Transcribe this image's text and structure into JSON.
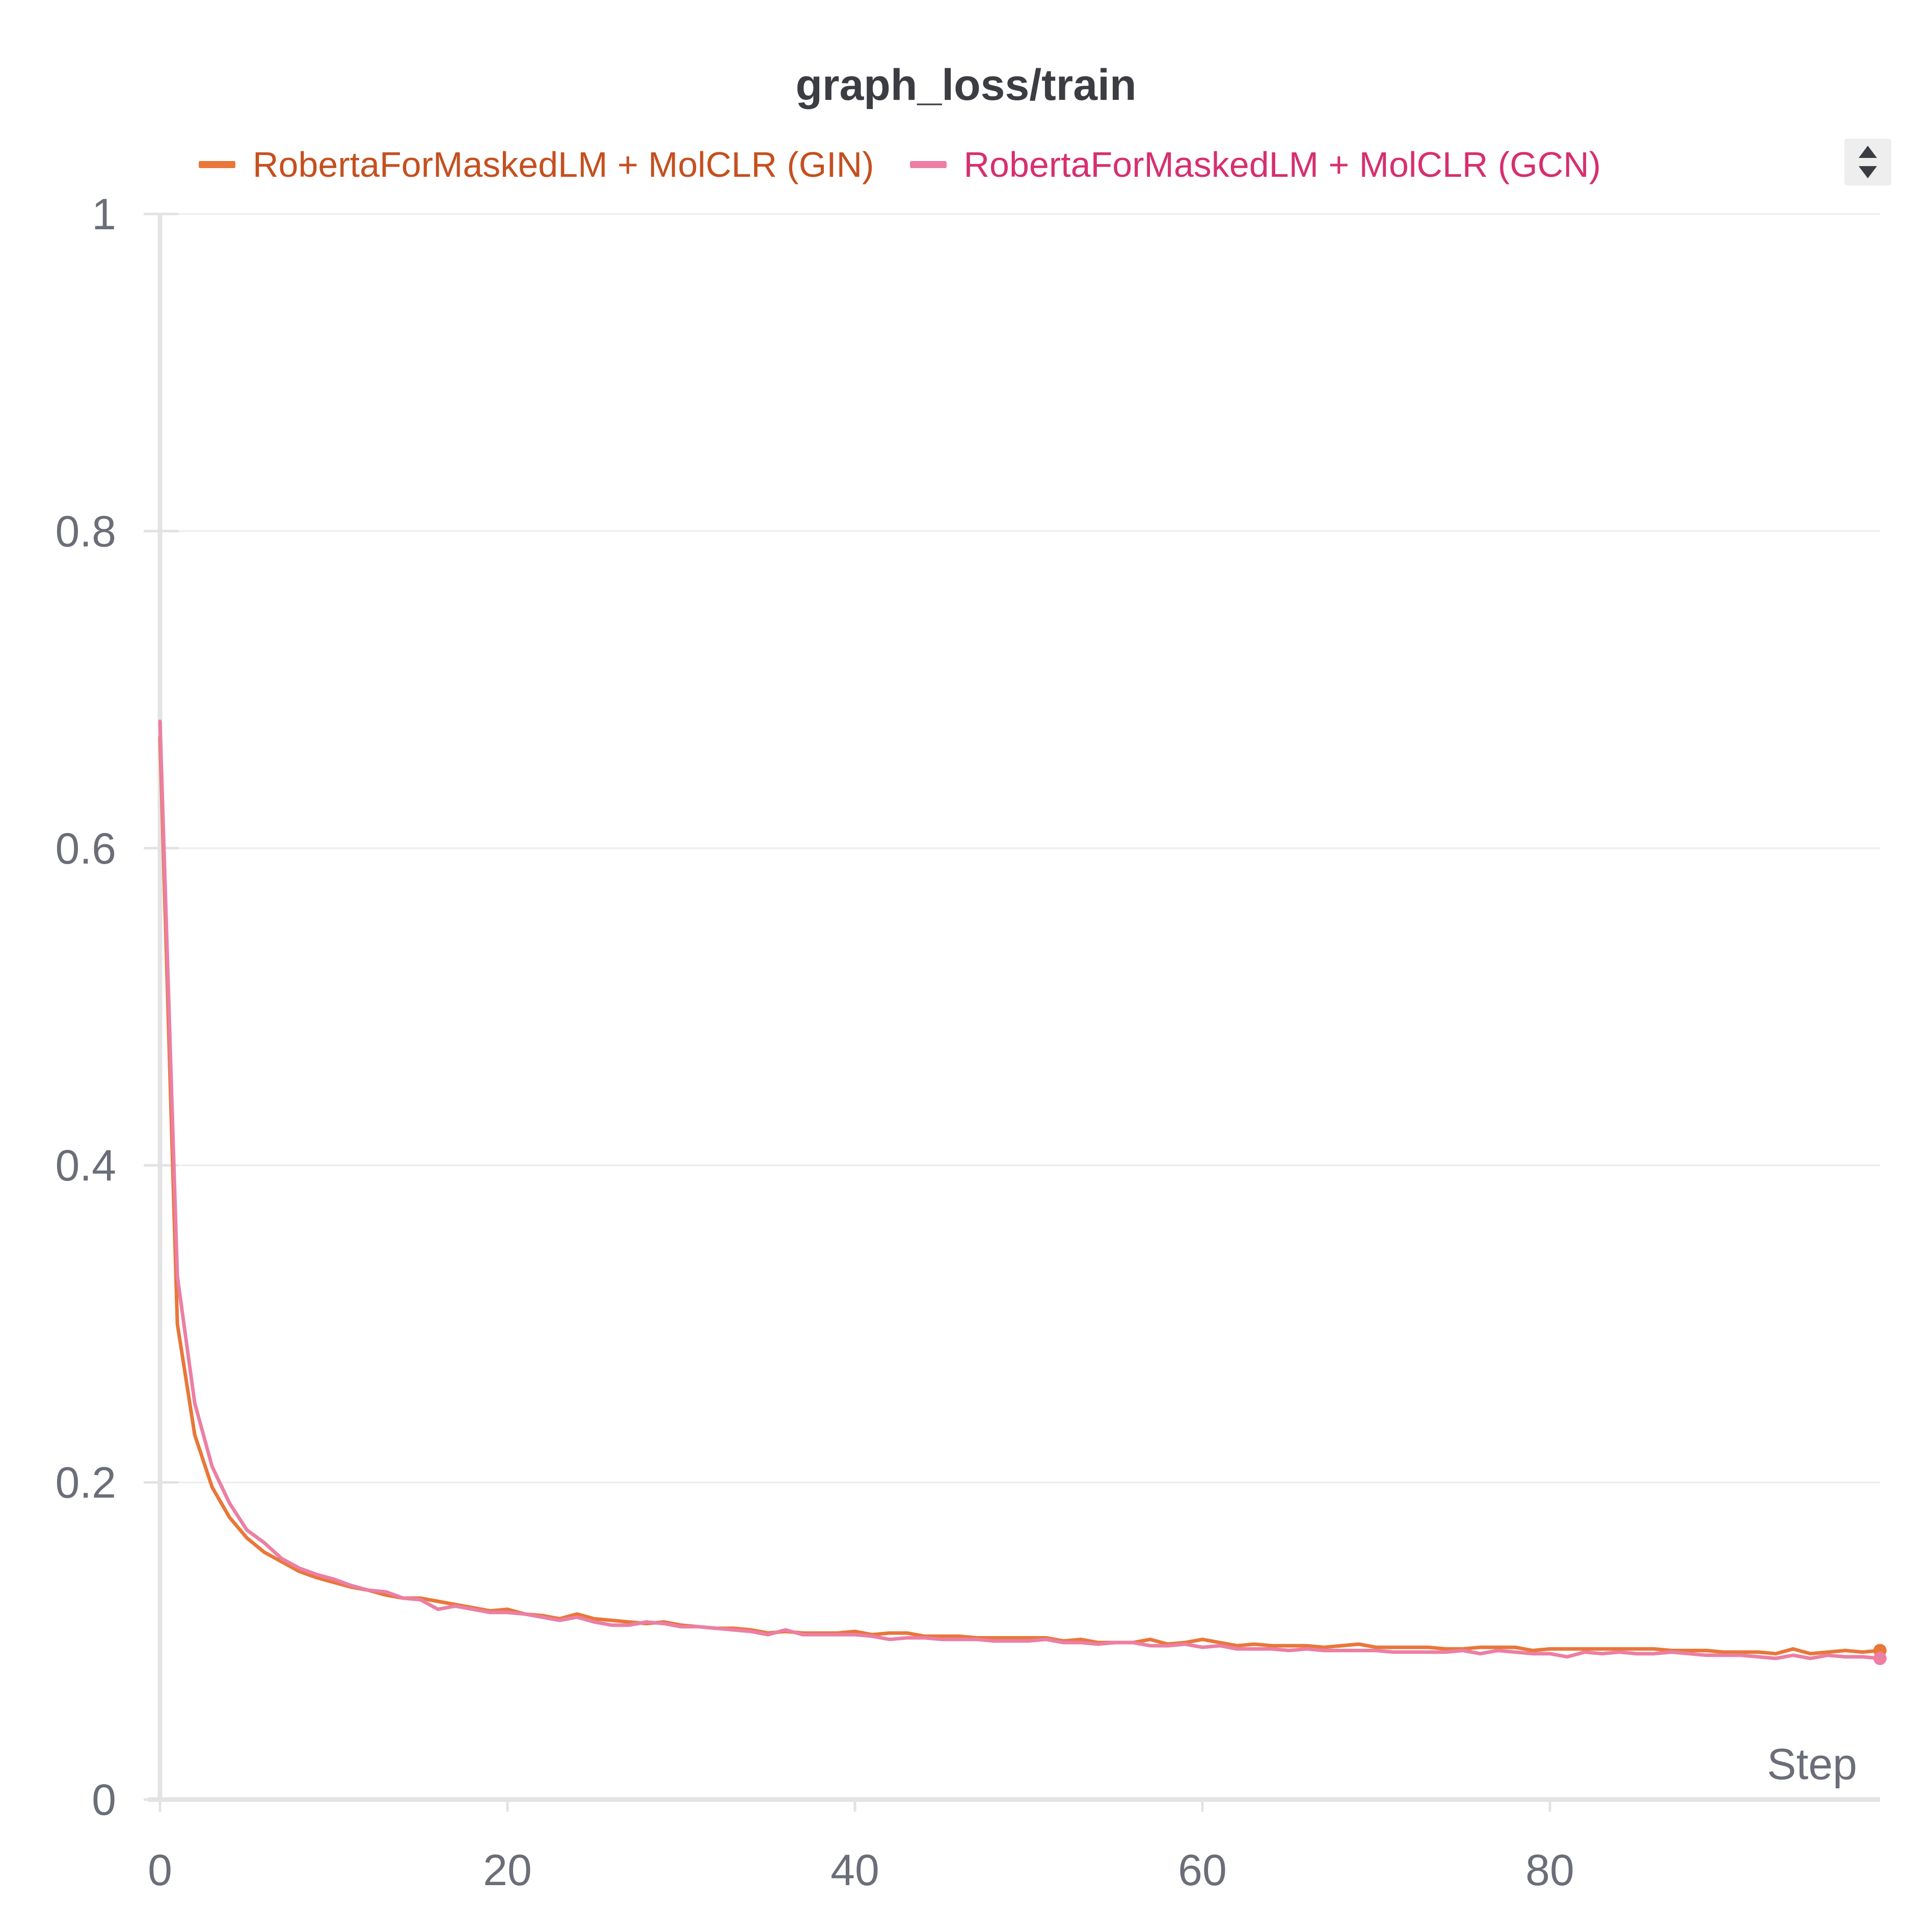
{
  "chart_data": {
    "type": "line",
    "title": "graph_loss/train",
    "xlabel": "Step",
    "ylabel": "",
    "xlim": [
      0,
      99
    ],
    "ylim": [
      0,
      1
    ],
    "x_ticks": [
      "0",
      "20",
      "40",
      "60",
      "80"
    ],
    "x_tick_values": [
      0,
      20,
      40,
      60,
      80
    ],
    "y_ticks": [
      "0",
      "0.2",
      "0.4",
      "0.6",
      "0.8",
      "1"
    ],
    "y_tick_values": [
      0,
      0.2,
      0.4,
      0.6,
      0.8,
      1
    ],
    "grid": true,
    "legend_position": "top",
    "series": [
      {
        "name": "RobertaForMaskedLM + MolCLR (GIN)",
        "line_color": "#e8773a",
        "label_color": "#c4501f",
        "x": [
          0,
          1,
          2,
          3,
          4,
          5,
          6,
          7,
          8,
          9,
          10,
          11,
          12,
          13,
          14,
          15,
          16,
          17,
          18,
          19,
          20,
          21,
          22,
          23,
          24,
          25,
          26,
          27,
          28,
          29,
          30,
          31,
          32,
          33,
          34,
          35,
          36,
          37,
          38,
          39,
          40,
          41,
          42,
          43,
          44,
          45,
          46,
          47,
          48,
          49,
          50,
          51,
          52,
          53,
          54,
          55,
          56,
          57,
          58,
          59,
          60,
          61,
          62,
          63,
          64,
          65,
          66,
          67,
          68,
          69,
          70,
          71,
          72,
          73,
          74,
          75,
          76,
          77,
          78,
          79,
          80,
          81,
          82,
          83,
          84,
          85,
          86,
          87,
          88,
          89,
          90,
          91,
          92,
          93,
          94,
          95,
          96,
          97,
          98,
          99
        ],
        "y": [
          0.67,
          0.3,
          0.23,
          0.197,
          0.178,
          0.165,
          0.156,
          0.15,
          0.144,
          0.14,
          0.137,
          0.134,
          0.132,
          0.129,
          0.127,
          0.127,
          0.125,
          0.123,
          0.121,
          0.119,
          0.12,
          0.117,
          0.116,
          0.114,
          0.117,
          0.114,
          0.113,
          0.112,
          0.111,
          0.112,
          0.11,
          0.109,
          0.108,
          0.108,
          0.107,
          0.105,
          0.106,
          0.105,
          0.105,
          0.105,
          0.106,
          0.104,
          0.105,
          0.105,
          0.103,
          0.103,
          0.103,
          0.102,
          0.102,
          0.102,
          0.102,
          0.102,
          0.1,
          0.101,
          0.099,
          0.099,
          0.099,
          0.101,
          0.098,
          0.099,
          0.101,
          0.099,
          0.097,
          0.098,
          0.097,
          0.097,
          0.097,
          0.096,
          0.097,
          0.098,
          0.096,
          0.096,
          0.096,
          0.096,
          0.095,
          0.095,
          0.096,
          0.096,
          0.096,
          0.094,
          0.095,
          0.095,
          0.095,
          0.095,
          0.095,
          0.095,
          0.095,
          0.094,
          0.094,
          0.094,
          0.093,
          0.093,
          0.093,
          0.092,
          0.095,
          0.092,
          0.093,
          0.094,
          0.093,
          0.094
        ]
      },
      {
        "name": "RobertaForMaskedLM + MolCLR (GCN)",
        "line_color": "#ec7fa3",
        "label_color": "#d62f6f",
        "x": [
          0,
          1,
          2,
          3,
          4,
          5,
          6,
          7,
          8,
          9,
          10,
          11,
          12,
          13,
          14,
          15,
          16,
          17,
          18,
          19,
          20,
          21,
          22,
          23,
          24,
          25,
          26,
          27,
          28,
          29,
          30,
          31,
          32,
          33,
          34,
          35,
          36,
          37,
          38,
          39,
          40,
          41,
          42,
          43,
          44,
          45,
          46,
          47,
          48,
          49,
          50,
          51,
          52,
          53,
          54,
          55,
          56,
          57,
          58,
          59,
          60,
          61,
          62,
          63,
          64,
          65,
          66,
          67,
          68,
          69,
          70,
          71,
          72,
          73,
          74,
          75,
          76,
          77,
          78,
          79,
          80,
          81,
          82,
          83,
          84,
          85,
          86,
          87,
          88,
          89,
          90,
          91,
          92,
          93,
          94,
          95,
          96,
          97,
          98,
          99
        ],
        "y": [
          0.68,
          0.33,
          0.25,
          0.21,
          0.187,
          0.17,
          0.162,
          0.152,
          0.146,
          0.142,
          0.139,
          0.135,
          0.132,
          0.131,
          0.127,
          0.126,
          0.12,
          0.122,
          0.12,
          0.118,
          0.118,
          0.117,
          0.115,
          0.113,
          0.115,
          0.112,
          0.11,
          0.11,
          0.112,
          0.111,
          0.109,
          0.109,
          0.108,
          0.107,
          0.106,
          0.104,
          0.107,
          0.104,
          0.104,
          0.104,
          0.104,
          0.103,
          0.101,
          0.102,
          0.102,
          0.101,
          0.101,
          0.101,
          0.1,
          0.1,
          0.1,
          0.101,
          0.099,
          0.099,
          0.098,
          0.099,
          0.099,
          0.097,
          0.097,
          0.098,
          0.096,
          0.097,
          0.095,
          0.095,
          0.095,
          0.094,
          0.095,
          0.094,
          0.094,
          0.094,
          0.094,
          0.093,
          0.093,
          0.093,
          0.093,
          0.094,
          0.092,
          0.094,
          0.093,
          0.092,
          0.092,
          0.09,
          0.093,
          0.092,
          0.093,
          0.092,
          0.092,
          0.093,
          0.092,
          0.091,
          0.091,
          0.091,
          0.09,
          0.089,
          0.091,
          0.089,
          0.091,
          0.09,
          0.09,
          0.089
        ]
      }
    ]
  },
  "legend": {
    "sort_toggle_icon": "sort-arrows-icon"
  }
}
